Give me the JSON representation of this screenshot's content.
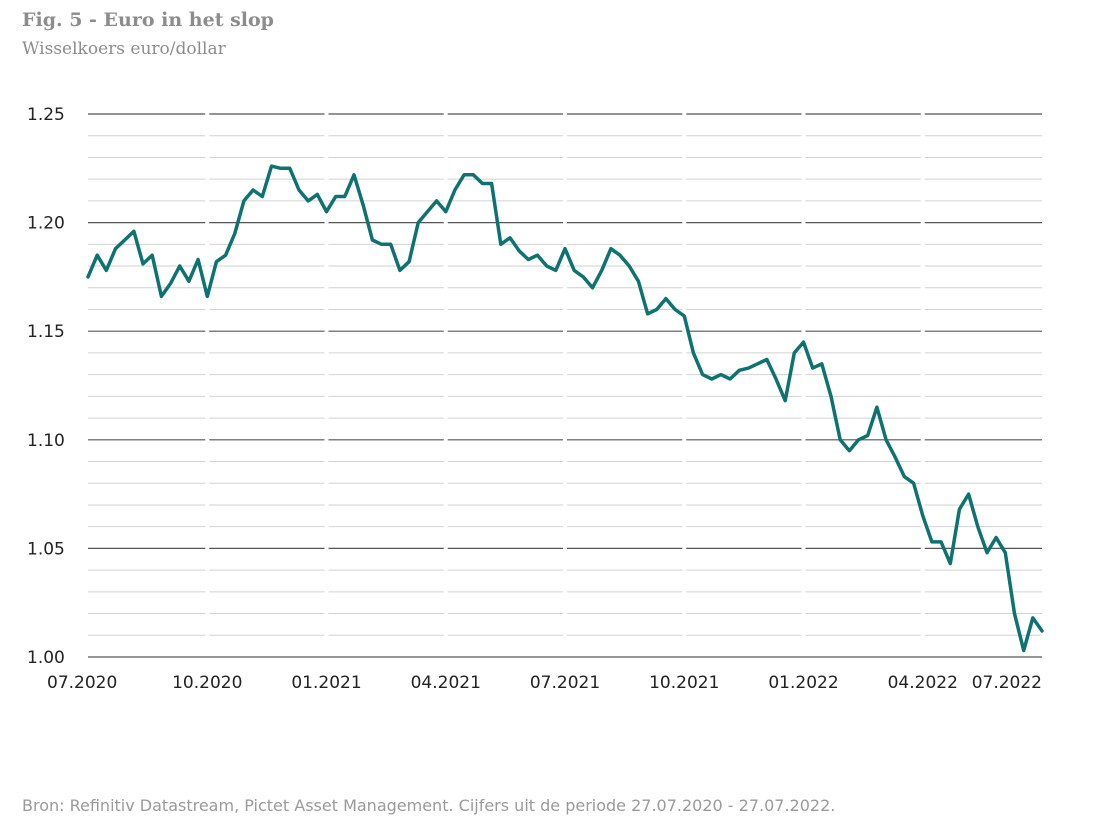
{
  "chart_data": {
    "type": "line",
    "title": "Fig. 5 - Euro in het slop",
    "subtitle": "Wisselkoers euro/dollar",
    "source": "Bron: Refinitiv Datastream, Pictet Asset Management. Cijfers uit de periode 27.07.2020 - 27.07.2022.",
    "ylim": [
      1.0,
      1.25
    ],
    "yticks": [
      "1.25",
      "1.20",
      "1.15",
      "1.10",
      "1.05",
      "1.00"
    ],
    "xticks": [
      "07.2020",
      "10.2020",
      "01.2021",
      "04.2021",
      "07.2021",
      "10.2021",
      "01.2022",
      "04.2022",
      "07.2022"
    ],
    "grid": true,
    "color": "#0e7370",
    "x": [
      "2020-07-27",
      "2020-08-03",
      "2020-08-10",
      "2020-08-17",
      "2020-08-24",
      "2020-08-31",
      "2020-09-07",
      "2020-09-14",
      "2020-09-21",
      "2020-09-28",
      "2020-10-05",
      "2020-10-12",
      "2020-10-19",
      "2020-10-26",
      "2020-11-02",
      "2020-11-09",
      "2020-11-16",
      "2020-11-23",
      "2020-11-30",
      "2020-12-07",
      "2020-12-14",
      "2020-12-21",
      "2020-12-28",
      "2021-01-04",
      "2021-01-11",
      "2021-01-18",
      "2021-01-25",
      "2021-02-01",
      "2021-02-08",
      "2021-02-15",
      "2021-02-22",
      "2021-03-01",
      "2021-03-08",
      "2021-03-15",
      "2021-03-22",
      "2021-03-29",
      "2021-04-05",
      "2021-04-12",
      "2021-04-19",
      "2021-04-26",
      "2021-05-03",
      "2021-05-10",
      "2021-05-17",
      "2021-05-24",
      "2021-05-31",
      "2021-06-07",
      "2021-06-14",
      "2021-06-21",
      "2021-06-28",
      "2021-07-05",
      "2021-07-12",
      "2021-07-19",
      "2021-07-26",
      "2021-08-02",
      "2021-08-09",
      "2021-08-16",
      "2021-08-23",
      "2021-08-30",
      "2021-09-06",
      "2021-09-13",
      "2021-09-20",
      "2021-09-27",
      "2021-10-04",
      "2021-10-11",
      "2021-10-18",
      "2021-10-25",
      "2021-11-01",
      "2021-11-08",
      "2021-11-15",
      "2021-11-22",
      "2021-11-29",
      "2021-12-06",
      "2021-12-13",
      "2021-12-20",
      "2021-12-27",
      "2022-01-03",
      "2022-01-10",
      "2022-01-17",
      "2022-01-24",
      "2022-01-31",
      "2022-02-07",
      "2022-02-14",
      "2022-02-21",
      "2022-02-28",
      "2022-03-07",
      "2022-03-14",
      "2022-03-21",
      "2022-03-28",
      "2022-04-04",
      "2022-04-11",
      "2022-04-18",
      "2022-04-25",
      "2022-05-02",
      "2022-05-09",
      "2022-05-16",
      "2022-05-23",
      "2022-05-30",
      "2022-06-06",
      "2022-06-13",
      "2022-06-20",
      "2022-06-27",
      "2022-07-04",
      "2022-07-11",
      "2022-07-18",
      "2022-07-25"
    ],
    "values": [
      1.175,
      1.185,
      1.178,
      1.188,
      1.192,
      1.196,
      1.181,
      1.185,
      1.166,
      1.172,
      1.18,
      1.173,
      1.183,
      1.166,
      1.182,
      1.185,
      1.195,
      1.21,
      1.215,
      1.212,
      1.226,
      1.225,
      1.225,
      1.215,
      1.21,
      1.213,
      1.205,
      1.212,
      1.212,
      1.222,
      1.208,
      1.192,
      1.19,
      1.19,
      1.178,
      1.182,
      1.2,
      1.205,
      1.21,
      1.205,
      1.215,
      1.222,
      1.222,
      1.218,
      1.218,
      1.19,
      1.193,
      1.187,
      1.183,
      1.185,
      1.18,
      1.178,
      1.188,
      1.178,
      1.175,
      1.17,
      1.178,
      1.188,
      1.185,
      1.18,
      1.173,
      1.158,
      1.16,
      1.165,
      1.16,
      1.157,
      1.14,
      1.13,
      1.128,
      1.13,
      1.128,
      1.132,
      1.133,
      1.135,
      1.137,
      1.128,
      1.118,
      1.14,
      1.145,
      1.133,
      1.135,
      1.12,
      1.1,
      1.095,
      1.1,
      1.102,
      1.115,
      1.1,
      1.092,
      1.083,
      1.08,
      1.065,
      1.053,
      1.053,
      1.043,
      1.068,
      1.075,
      1.06,
      1.048,
      1.055,
      1.048,
      1.02,
      1.003,
      1.018,
      1.012
    ]
  }
}
